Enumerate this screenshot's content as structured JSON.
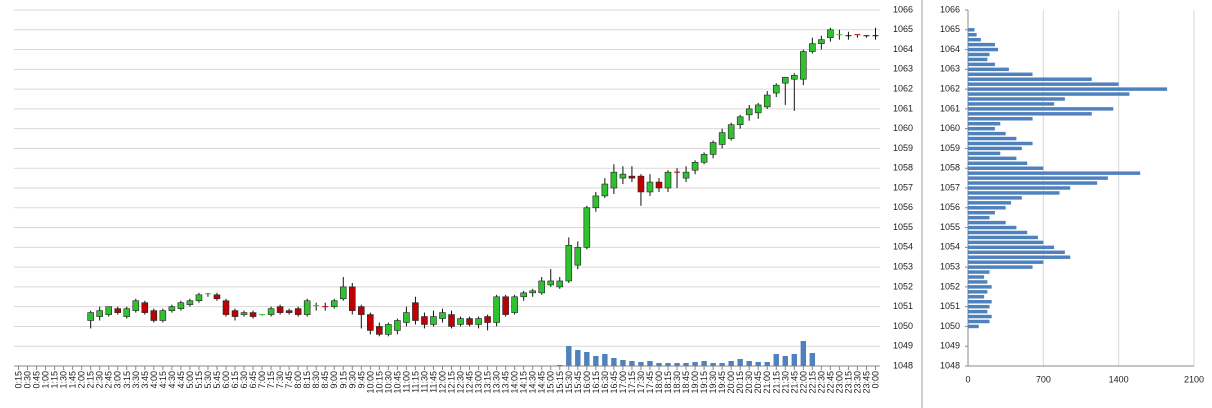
{
  "chart_data": [
    {
      "type": "candlestick",
      "x": [
        "0:15",
        "0:30",
        "0:45",
        "1:00",
        "1:15",
        "1:30",
        "1:45",
        "2:00",
        "2:15",
        "2:30",
        "2:45",
        "3:00",
        "3:15",
        "3:30",
        "3:45",
        "4:00",
        "4:15",
        "4:30",
        "4:45",
        "5:00",
        "5:15",
        "5:30",
        "5:45",
        "6:00",
        "6:15",
        "6:30",
        "6:45",
        "7:00",
        "7:15",
        "7:30",
        "7:45",
        "8:00",
        "8:15",
        "8:30",
        "8:45",
        "9:00",
        "9:15",
        "9:30",
        "9:45",
        "10:00",
        "10:15",
        "10:30",
        "10:45",
        "11:00",
        "11:15",
        "11:30",
        "11:45",
        "12:00",
        "12:15",
        "12:30",
        "12:45",
        "13:00",
        "13:15",
        "13:30",
        "13:45",
        "14:00",
        "14:15",
        "14:30",
        "14:45",
        "15:00",
        "15:15",
        "15:30",
        "15:45",
        "16:00",
        "16:15",
        "16:30",
        "16:45",
        "17:00",
        "17:15",
        "17:30",
        "17:45",
        "18:00",
        "18:15",
        "18:30",
        "18:45",
        "19:00",
        "19:15",
        "19:30",
        "19:45",
        "20:00",
        "20:15",
        "20:30",
        "20:45",
        "21:00",
        "21:15",
        "21:30",
        "21:45",
        "22:00",
        "22:15",
        "22:30",
        "22:45",
        "23:00",
        "23:15",
        "23:30",
        "23:45",
        "0:00"
      ],
      "open": [
        null,
        null,
        null,
        null,
        null,
        null,
        null,
        null,
        1050.3,
        1050.5,
        1050.6,
        1050.9,
        1050.5,
        1050.8,
        1051.2,
        1050.8,
        1050.3,
        1050.8,
        1050.9,
        1051.1,
        1051.3,
        1051.6,
        1051.6,
        1051.3,
        1050.8,
        1050.6,
        1050.7,
        1050.55,
        1050.6,
        1051.0,
        1050.8,
        1050.9,
        1050.6,
        1051.0,
        1051.0,
        1051.0,
        1051.4,
        1052.0,
        1051.0,
        1050.6,
        1050.0,
        1049.6,
        1049.8,
        1050.2,
        1051.2,
        1050.5,
        1050.1,
        1050.4,
        1050.6,
        1050.1,
        1050.4,
        1050.1,
        1050.5,
        1050.2,
        1051.5,
        1050.7,
        1051.5,
        1051.7,
        1051.7,
        1052.1,
        1052.0,
        1052.3,
        1053.1,
        1054.0,
        1056.0,
        1056.6,
        1057.0,
        1057.5,
        1057.6,
        1057.6,
        1056.8,
        1057.3,
        1057.0,
        1057.8,
        1057.5,
        1057.9,
        1058.3,
        1058.7,
        1059.2,
        1059.5,
        1060.2,
        1060.7,
        1060.8,
        1061.1,
        1061.8,
        1062.3,
        1062.5,
        1062.5,
        1063.9,
        1064.3,
        1064.6,
        1064.7,
        1064.7,
        1064.75,
        1064.7,
        1064.7
      ],
      "high": [
        null,
        null,
        null,
        null,
        null,
        null,
        null,
        null,
        1050.8,
        1051.0,
        1051.0,
        1051.0,
        1051.0,
        1051.4,
        1051.3,
        1050.9,
        1050.9,
        1051.1,
        1051.3,
        1051.4,
        1051.7,
        1051.7,
        1051.7,
        1051.4,
        1050.9,
        1050.8,
        1050.8,
        1050.6,
        1051.0,
        1051.1,
        1050.9,
        1051.0,
        1051.4,
        1051.2,
        1051.2,
        1051.4,
        1052.5,
        1052.2,
        1051.1,
        1050.7,
        1050.2,
        1050.2,
        1050.4,
        1051.0,
        1051.5,
        1050.7,
        1050.8,
        1050.9,
        1050.8,
        1050.5,
        1050.5,
        1050.5,
        1050.6,
        1051.6,
        1051.6,
        1051.6,
        1051.8,
        1051.9,
        1052.5,
        1052.9,
        1052.5,
        1054.5,
        1054.3,
        1056.1,
        1056.8,
        1057.5,
        1058.2,
        1058.1,
        1058.1,
        1057.7,
        1057.7,
        1057.5,
        1057.9,
        1058.0,
        1058.1,
        1058.4,
        1058.8,
        1059.4,
        1060.0,
        1060.3,
        1060.7,
        1061.2,
        1061.3,
        1061.9,
        1062.3,
        1062.6,
        1062.8,
        1064.0,
        1064.6,
        1064.7,
        1065.1,
        1065.0,
        1064.9,
        1064.75,
        1064.7,
        1065.1
      ],
      "low": [
        null,
        null,
        null,
        null,
        null,
        null,
        null,
        null,
        1049.9,
        1050.3,
        1050.5,
        1050.6,
        1050.4,
        1050.7,
        1050.6,
        1050.2,
        1050.2,
        1050.7,
        1050.8,
        1051.0,
        1051.2,
        1051.5,
        1051.3,
        1050.5,
        1050.3,
        1050.5,
        1050.4,
        1050.55,
        1050.5,
        1050.6,
        1050.6,
        1050.5,
        1050.5,
        1050.8,
        1050.8,
        1050.9,
        1051.3,
        1050.6,
        1049.9,
        1049.6,
        1049.5,
        1049.5,
        1049.6,
        1050.0,
        1050.1,
        1049.9,
        1050.0,
        1050.2,
        1049.9,
        1050.0,
        1050.0,
        1049.9,
        1049.8,
        1050.0,
        1050.5,
        1050.6,
        1051.3,
        1051.5,
        1051.6,
        1052.0,
        1051.9,
        1052.2,
        1052.9,
        1053.9,
        1055.8,
        1056.5,
        1056.7,
        1057.2,
        1057.3,
        1056.1,
        1056.6,
        1056.8,
        1056.8,
        1057.0,
        1057.3,
        1057.7,
        1058.2,
        1058.5,
        1059.0,
        1059.4,
        1060.0,
        1060.4,
        1060.5,
        1061.0,
        1061.6,
        1061.2,
        1060.9,
        1062.2,
        1063.8,
        1064.0,
        1064.4,
        1064.5,
        1064.5,
        1064.6,
        1064.6,
        1064.5
      ],
      "close": [
        null,
        null,
        null,
        null,
        null,
        null,
        null,
        null,
        1050.7,
        1050.8,
        1051.0,
        1050.7,
        1050.9,
        1051.3,
        1050.7,
        1050.3,
        1050.8,
        1051.0,
        1051.2,
        1051.3,
        1051.6,
        1051.65,
        1051.4,
        1050.6,
        1050.5,
        1050.7,
        1050.5,
        1050.6,
        1050.9,
        1050.7,
        1050.7,
        1050.6,
        1051.3,
        1051.05,
        1050.95,
        1051.3,
        1052.0,
        1050.8,
        1050.6,
        1049.8,
        1049.6,
        1050.1,
        1050.3,
        1050.7,
        1050.3,
        1050.1,
        1050.5,
        1050.7,
        1050.0,
        1050.4,
        1050.1,
        1050.4,
        1050.2,
        1051.5,
        1050.6,
        1051.5,
        1051.7,
        1051.8,
        1052.3,
        1052.3,
        1052.3,
        1054.1,
        1054.0,
        1056.0,
        1056.6,
        1057.2,
        1057.8,
        1057.7,
        1057.5,
        1056.8,
        1057.3,
        1057.0,
        1057.8,
        1057.75,
        1057.8,
        1058.3,
        1058.7,
        1059.3,
        1059.8,
        1060.2,
        1060.6,
        1061.0,
        1061.2,
        1061.7,
        1062.2,
        1062.6,
        1062.7,
        1063.9,
        1064.3,
        1064.5,
        1065.0,
        1064.75,
        1064.7,
        1064.7,
        1064.7,
        1064.7
      ],
      "volume": [
        null,
        null,
        null,
        null,
        null,
        null,
        null,
        null,
        null,
        null,
        null,
        null,
        null,
        null,
        null,
        null,
        null,
        null,
        null,
        null,
        null,
        null,
        null,
        null,
        null,
        null,
        null,
        null,
        null,
        null,
        null,
        null,
        null,
        null,
        null,
        null,
        null,
        null,
        null,
        null,
        null,
        null,
        null,
        null,
        null,
        null,
        null,
        null,
        null,
        null,
        null,
        null,
        null,
        null,
        null,
        null,
        null,
        null,
        null,
        null,
        1,
        20,
        16,
        14,
        10,
        12,
        8,
        6,
        5,
        4,
        5,
        3,
        3,
        3,
        3,
        4,
        5,
        3,
        3,
        5,
        7,
        5,
        4,
        4,
        12,
        10,
        12,
        25,
        13,
        null,
        null,
        null,
        null,
        null,
        null,
        null
      ],
      "up_color": "#2fc12f",
      "down_color": "#c00000",
      "volume_color": "#4f81bd",
      "ylim": [
        1048,
        1066
      ],
      "yticks": [
        1048,
        1049,
        1050,
        1051,
        1052,
        1053,
        1054,
        1055,
        1056,
        1057,
        1058,
        1059,
        1060,
        1061,
        1062,
        1063,
        1064,
        1065,
        1066
      ],
      "grid": true
    },
    {
      "type": "hbar",
      "levels": [
        1050.0,
        1050.25,
        1050.5,
        1050.75,
        1051.0,
        1051.25,
        1051.5,
        1051.75,
        1052.0,
        1052.25,
        1052.5,
        1052.75,
        1053.0,
        1053.25,
        1053.5,
        1053.75,
        1054.0,
        1054.25,
        1054.5,
        1054.75,
        1055.0,
        1055.25,
        1055.5,
        1055.75,
        1056.0,
        1056.25,
        1056.5,
        1056.75,
        1057.0,
        1057.25,
        1057.5,
        1057.75,
        1058.0,
        1058.25,
        1058.5,
        1058.75,
        1059.0,
        1059.25,
        1059.5,
        1059.75,
        1060.0,
        1060.25,
        1060.5,
        1060.75,
        1061.0,
        1061.25,
        1061.5,
        1061.75,
        1062.0,
        1062.25,
        1062.5,
        1062.75,
        1063.0,
        1063.25,
        1063.5,
        1063.75,
        1064.0,
        1064.25,
        1064.5,
        1064.75,
        1065.0
      ],
      "values": [
        100,
        200,
        220,
        180,
        200,
        220,
        150,
        180,
        220,
        180,
        150,
        200,
        600,
        700,
        950,
        900,
        800,
        700,
        650,
        550,
        450,
        350,
        200,
        250,
        350,
        400,
        500,
        850,
        950,
        1200,
        1300,
        1600,
        700,
        550,
        450,
        300,
        500,
        600,
        450,
        350,
        250,
        300,
        600,
        1150,
        1350,
        800,
        900,
        1500,
        1850,
        1400,
        1150,
        600,
        380,
        250,
        180,
        200,
        280,
        250,
        120,
        80,
        60
      ],
      "color": "#4f81bd",
      "xlim": [
        0,
        2100
      ],
      "xticks": [
        0,
        700,
        1400,
        2100
      ],
      "ylim": [
        1048,
        1066
      ],
      "yticks": [
        1048,
        1049,
        1050,
        1051,
        1052,
        1053,
        1054,
        1055,
        1056,
        1057,
        1058,
        1059,
        1060,
        1061,
        1062,
        1063,
        1064,
        1065,
        1066
      ],
      "grid": true
    }
  ]
}
